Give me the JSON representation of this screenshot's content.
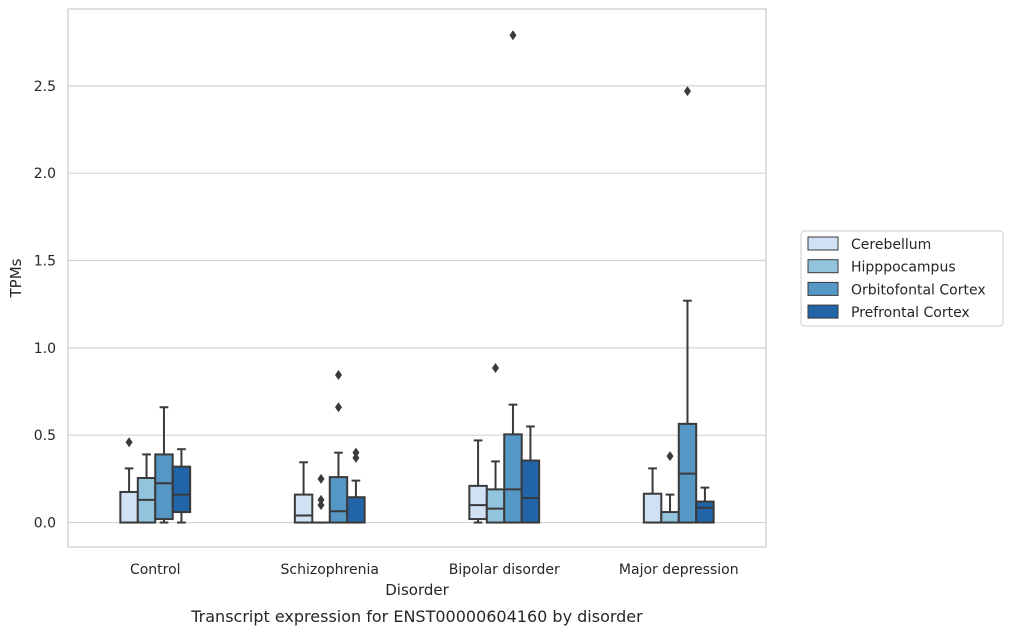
{
  "chart_data": {
    "type": "box",
    "title": "",
    "xlabel": "Disorder",
    "ylabel": "TPMs",
    "caption": "Transcript expression for ENST00000604160 by disorder",
    "categories": [
      "Control",
      "Schizophrenia",
      "Bipolar disorder",
      "Major depression"
    ],
    "yticks": [
      "0.0",
      "0.5",
      "1.0",
      "1.5",
      "2.0",
      "2.5"
    ],
    "ylim": [
      -0.14,
      2.94
    ],
    "grid": "horizontal",
    "legend_position": "right",
    "series": [
      {
        "name": "Cerebellum",
        "color": "#cfe1f2",
        "boxes": [
          {
            "whisker_low": 0.0,
            "q1": 0.0,
            "median": 0.0,
            "q3": 0.175,
            "whisker_high": 0.31,
            "outliers": [
              0.46
            ]
          },
          {
            "whisker_low": 0.0,
            "q1": 0.0,
            "median": 0.04,
            "q3": 0.16,
            "whisker_high": 0.345,
            "outliers": []
          },
          {
            "whisker_low": 0.0,
            "q1": 0.02,
            "median": 0.1,
            "q3": 0.21,
            "whisker_high": 0.47,
            "outliers": []
          },
          {
            "whisker_low": 0.0,
            "q1": 0.0,
            "median": 0.0,
            "q3": 0.165,
            "whisker_high": 0.31,
            "outliers": []
          }
        ]
      },
      {
        "name": "Hipppocampus",
        "color": "#93c4de",
        "boxes": [
          {
            "whisker_low": 0.0,
            "q1": 0.0,
            "median": 0.13,
            "q3": 0.255,
            "whisker_high": 0.39,
            "outliers": []
          },
          {
            "whisker_low": 0.0,
            "q1": 0.0,
            "median": 0.0,
            "q3": 0.0,
            "whisker_high": 0.0,
            "outliers": [
              0.1,
              0.13,
              0.25
            ]
          },
          {
            "whisker_low": 0.0,
            "q1": 0.0,
            "median": 0.08,
            "q3": 0.19,
            "whisker_high": 0.35,
            "outliers": [
              0.885
            ]
          },
          {
            "whisker_low": 0.0,
            "q1": 0.0,
            "median": 0.0,
            "q3": 0.06,
            "whisker_high": 0.16,
            "outliers": [
              0.38
            ]
          }
        ]
      },
      {
        "name": "Orbitofontal Cortex",
        "color": "#5597c5",
        "boxes": [
          {
            "whisker_low": 0.0,
            "q1": 0.02,
            "median": 0.225,
            "q3": 0.39,
            "whisker_high": 0.66,
            "outliers": []
          },
          {
            "whisker_low": 0.0,
            "q1": 0.0,
            "median": 0.065,
            "q3": 0.26,
            "whisker_high": 0.4,
            "outliers": [
              0.66,
              0.845
            ]
          },
          {
            "whisker_low": 0.0,
            "q1": 0.0,
            "median": 0.19,
            "q3": 0.505,
            "whisker_high": 0.675,
            "outliers": [
              2.79
            ]
          },
          {
            "whisker_low": 0.0,
            "q1": 0.0,
            "median": 0.28,
            "q3": 0.565,
            "whisker_high": 1.27,
            "outliers": [
              2.47
            ]
          }
        ]
      },
      {
        "name": "Prefrontal Cortex",
        "color": "#2165a8",
        "boxes": [
          {
            "whisker_low": 0.0,
            "q1": 0.06,
            "median": 0.16,
            "q3": 0.32,
            "whisker_high": 0.42,
            "outliers": []
          },
          {
            "whisker_low": 0.0,
            "q1": 0.0,
            "median": 0.0,
            "q3": 0.145,
            "whisker_high": 0.24,
            "outliers": [
              0.37,
              0.4
            ]
          },
          {
            "whisker_low": 0.0,
            "q1": 0.0,
            "median": 0.14,
            "q3": 0.355,
            "whisker_high": 0.55,
            "outliers": []
          },
          {
            "whisker_low": 0.0,
            "q1": 0.0,
            "median": 0.085,
            "q3": 0.12,
            "whisker_high": 0.2,
            "outliers": []
          }
        ]
      }
    ]
  }
}
